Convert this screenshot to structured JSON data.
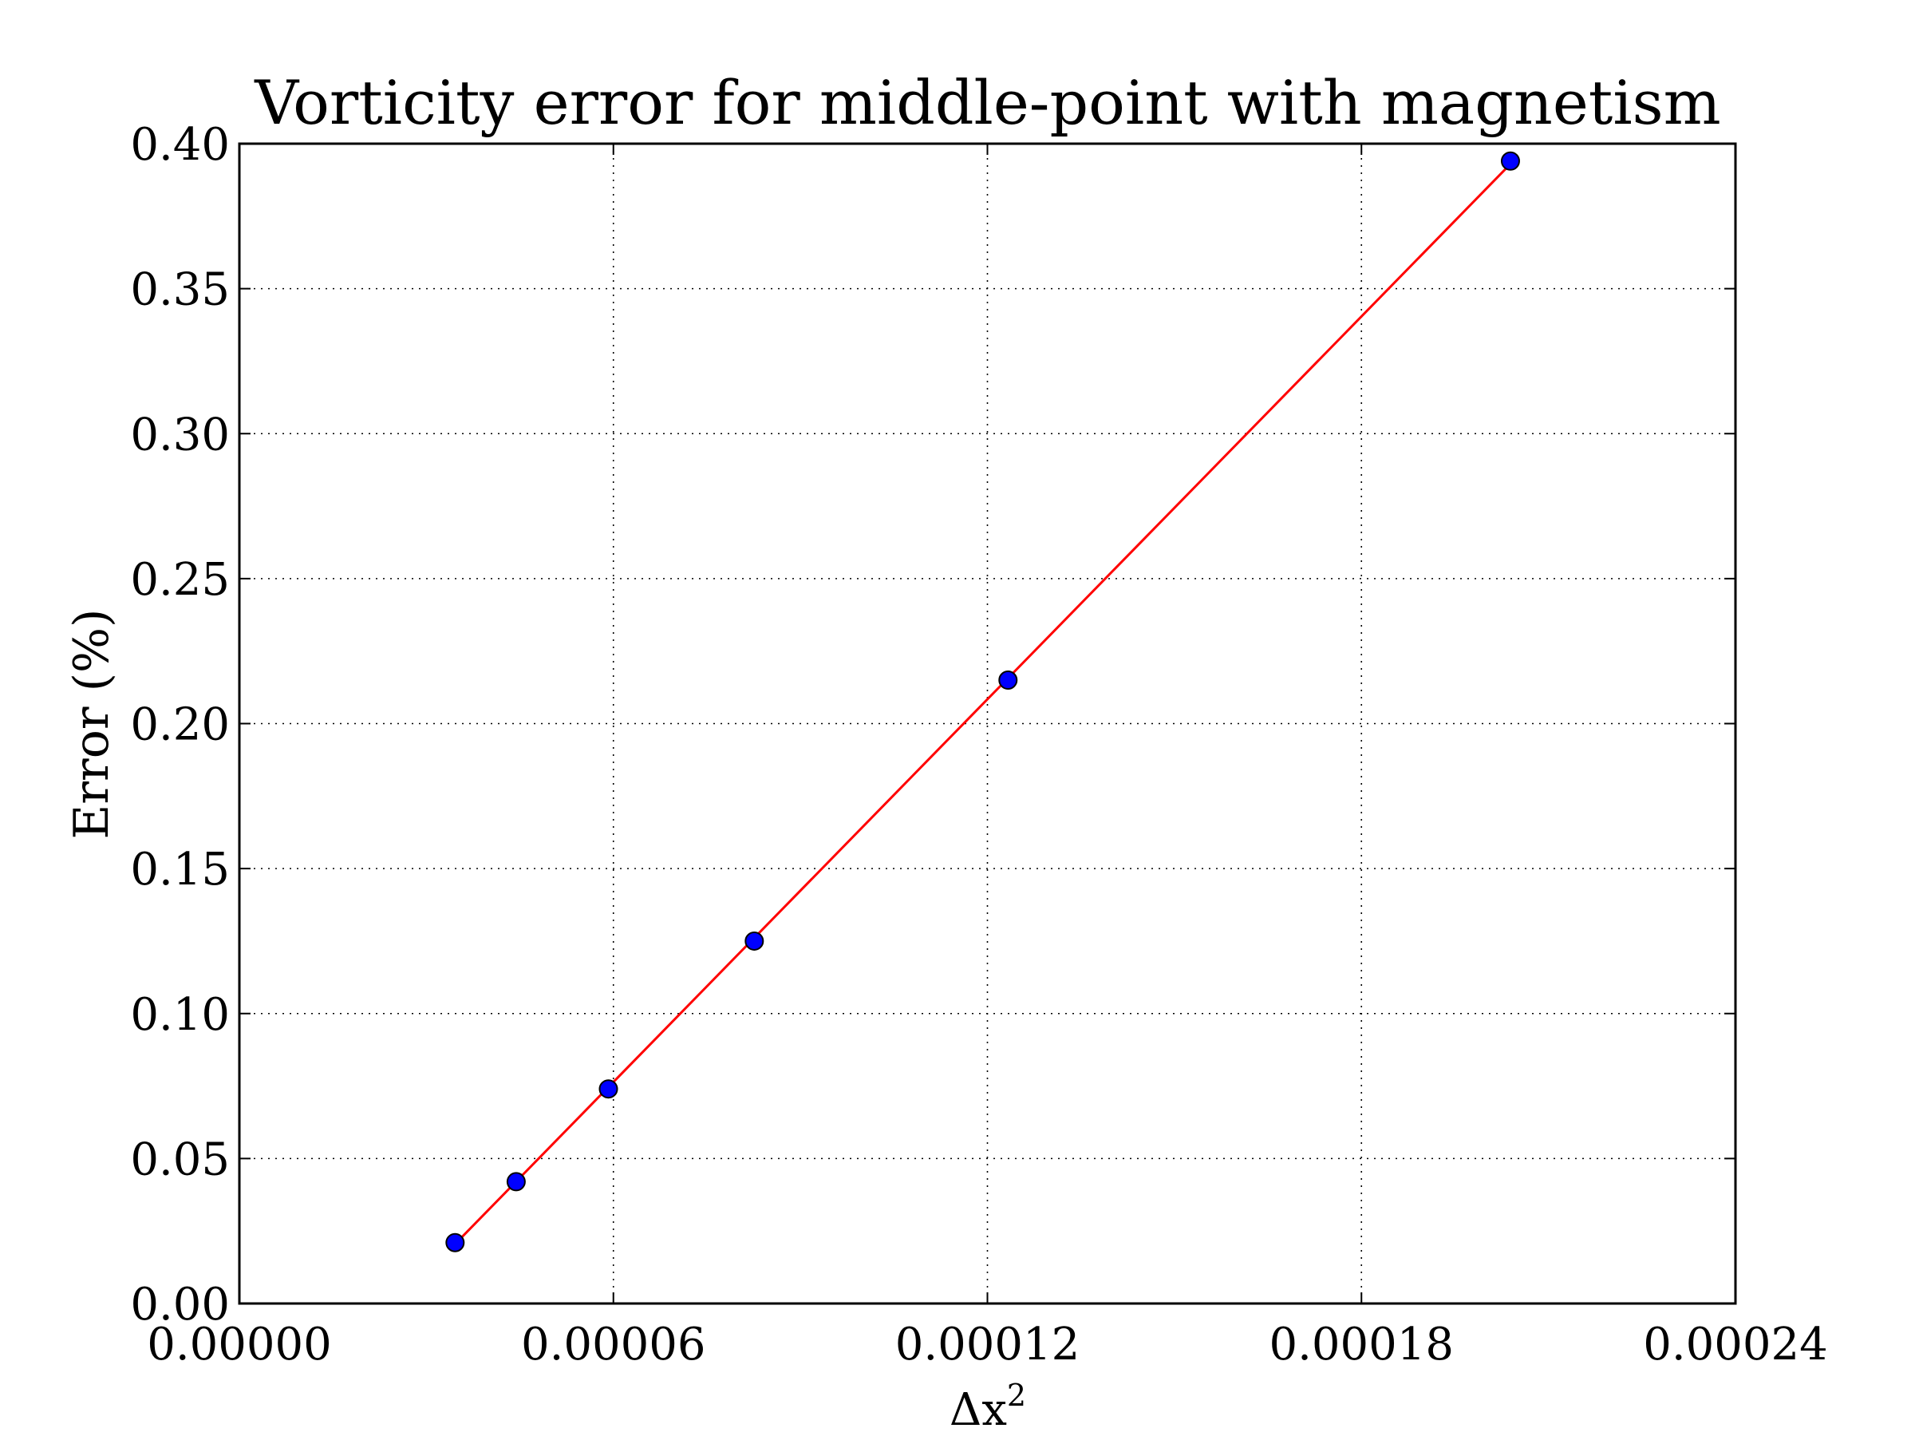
{
  "chart_data": {
    "type": "scatter",
    "title": "Vorticity error for middle-point with magnetism",
    "xlabel": "Δx",
    "xlabel_superscript": "2",
    "ylabel": "Error (%)",
    "xlim": [
      0,
      0.00024
    ],
    "ylim": [
      0,
      0.4
    ],
    "x_ticks": [
      0,
      6e-05,
      0.00012,
      0.00018,
      0.00024
    ],
    "x_tick_labels": [
      "0.00000",
      "0.00006",
      "0.00012",
      "0.00018",
      "0.00024"
    ],
    "y_ticks": [
      0,
      0.05,
      0.1,
      0.15,
      0.2,
      0.25,
      0.3,
      0.35,
      0.4
    ],
    "y_tick_labels": [
      "0.00",
      "0.05",
      "0.10",
      "0.15",
      "0.20",
      "0.25",
      "0.30",
      "0.35",
      "0.40"
    ],
    "grid": true,
    "grid_style": "dotted",
    "series": [
      {
        "kind": "markers",
        "color": "#0000ff",
        "points": [
          {
            "x": 3.46e-05,
            "y": 0.021
          },
          {
            "x": 4.44e-05,
            "y": 0.042
          },
          {
            "x": 5.92e-05,
            "y": 0.074
          },
          {
            "x": 8.26e-05,
            "y": 0.125
          },
          {
            "x": 0.0001233,
            "y": 0.215
          },
          {
            "x": 0.0002039,
            "y": 0.394
          }
        ]
      },
      {
        "kind": "line",
        "color": "#ff0000",
        "points": [
          {
            "x": 3.46e-05,
            "y": 0.0205
          },
          {
            "x": 0.0002039,
            "y": 0.393
          }
        ]
      }
    ]
  }
}
